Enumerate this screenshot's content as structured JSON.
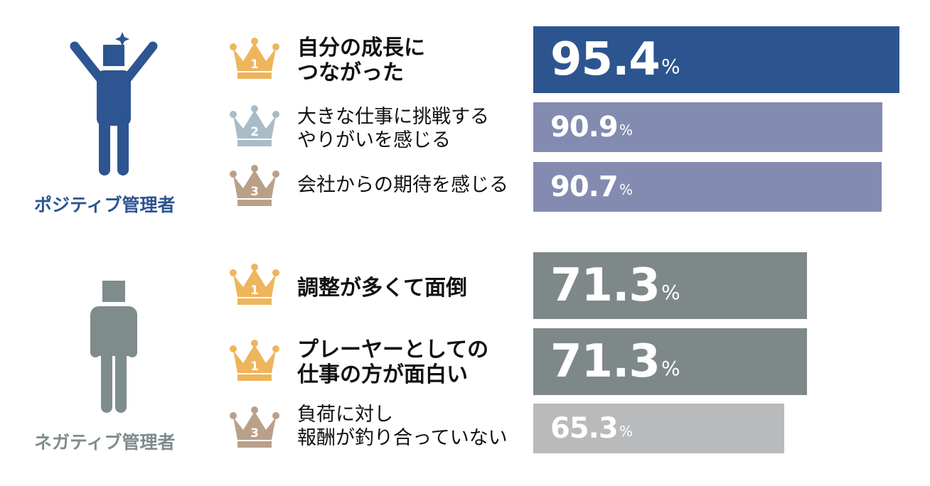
{
  "groups": [
    {
      "label": "ポジティブ管理者",
      "color": "#2d5591"
    },
    {
      "label": "ネガティブ管理者",
      "color": "#7f8c8c"
    }
  ],
  "chart_data": {
    "type": "bar",
    "unit": "%",
    "xlim": [
      0,
      100
    ],
    "groups": [
      {
        "name": "ポジティブ管理者",
        "items": [
          {
            "rank": "1",
            "label": "自分の成長に\nつながった",
            "value": 95.4,
            "value_text": "95.4",
            "color": "#2c5590"
          },
          {
            "rank": "2",
            "label": "大きな仕事に挑戦する\nやりがいを感じる",
            "value": 90.9,
            "value_text": "90.9",
            "color": "#838bb1"
          },
          {
            "rank": "3",
            "label": "会社からの期待を感じる",
            "value": 90.7,
            "value_text": "90.7",
            "color": "#838bb1"
          }
        ]
      },
      {
        "name": "ネガティブ管理者",
        "items": [
          {
            "rank": "1",
            "label": "調整が多くて面倒",
            "value": 71.3,
            "value_text": "71.3",
            "color": "#7e8889"
          },
          {
            "rank": "1",
            "label": "プレーヤーとしての\n仕事の方が面白い",
            "value": 71.3,
            "value_text": "71.3",
            "color": "#7e8889"
          },
          {
            "rank": "3",
            "label": "負荷に対し\n報酬が釣り合っていない",
            "value": 65.3,
            "value_text": "65.3",
            "color": "#b8babc"
          }
        ]
      }
    ]
  },
  "crown_colors": {
    "1": "#eeb55c",
    "2": "#a8bcc8",
    "3": "#b9a089"
  }
}
